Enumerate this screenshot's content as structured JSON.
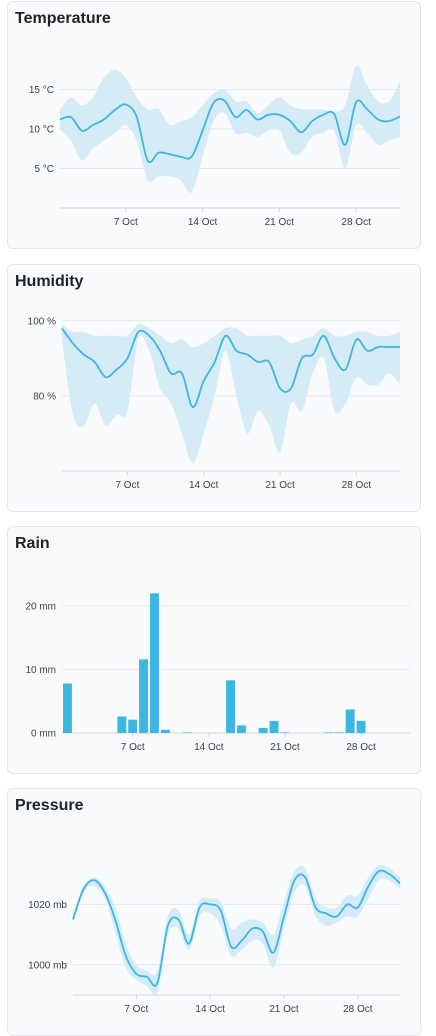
{
  "colors": {
    "line": "#3cb6e3",
    "band": "#cfe9f6",
    "bar": "#3cb6e3"
  },
  "charts": {
    "temperature": {
      "chart_data": {
        "type": "line",
        "title": "Temperature",
        "x_ticks": [
          {
            "day": 7,
            "label": "7 Oct"
          },
          {
            "day": 14,
            "label": "14 Oct"
          },
          {
            "day": 21,
            "label": "21 Oct"
          },
          {
            "day": 28,
            "label": "28 Oct"
          }
        ],
        "y_ticks": [
          {
            "value": 5,
            "label": "5 °C"
          },
          {
            "value": 10,
            "label": "10 °C"
          },
          {
            "value": 15,
            "label": "15 °C"
          }
        ],
        "xlim": [
          1,
          32
        ],
        "ylim": [
          0,
          20
        ],
        "x": [
          1,
          2,
          3,
          4,
          5,
          6,
          7,
          8,
          9,
          10,
          11,
          12,
          13,
          14,
          15,
          16,
          17,
          18,
          19,
          20,
          21,
          22,
          23,
          24,
          25,
          26,
          27,
          28,
          29,
          30,
          31,
          32
        ],
        "mean": [
          11.2,
          11.5,
          9.8,
          10.5,
          11.2,
          12.4,
          13.1,
          11.5,
          6.0,
          7.0,
          6.8,
          6.5,
          6.5,
          9.8,
          13.3,
          13.6,
          11.5,
          12.4,
          11.2,
          11.8,
          11.8,
          11.0,
          9.6,
          11.0,
          11.8,
          11.9,
          8.0,
          13.4,
          12.5,
          11.2,
          11.0,
          11.6
        ],
        "low": [
          10.0,
          8.5,
          6.0,
          7.5,
          8.5,
          9.5,
          10.5,
          8.5,
          3.5,
          4.0,
          4.0,
          3.5,
          2.0,
          6.5,
          11.0,
          12.0,
          9.5,
          9.5,
          9.0,
          9.8,
          9.8,
          7.0,
          7.0,
          9.0,
          9.5,
          9.8,
          5.0,
          10.5,
          9.5,
          8.0,
          8.5,
          9.0
        ],
        "high": [
          12.5,
          14.0,
          13.0,
          14.0,
          16.5,
          17.5,
          16.5,
          14.0,
          12.5,
          12.5,
          10.5,
          11.0,
          11.5,
          13.0,
          14.5,
          15.0,
          13.5,
          13.5,
          12.0,
          13.0,
          14.0,
          13.0,
          12.5,
          12.5,
          12.5,
          12.2,
          13.0,
          18.0,
          15.5,
          13.5,
          13.5,
          16.0
        ]
      }
    },
    "humidity": {
      "chart_data": {
        "type": "line",
        "title": "Humidity",
        "x_ticks": [
          {
            "day": 7,
            "label": "7 Oct"
          },
          {
            "day": 14,
            "label": "14 Oct"
          },
          {
            "day": 21,
            "label": "21 Oct"
          },
          {
            "day": 28,
            "label": "28 Oct"
          }
        ],
        "y_ticks": [
          {
            "value": 80,
            "label": "80 %"
          },
          {
            "value": 100,
            "label": "100 %"
          }
        ],
        "xlim": [
          1,
          32
        ],
        "ylim": [
          60,
          101
        ],
        "x": [
          1,
          2,
          3,
          4,
          5,
          6,
          7,
          8,
          9,
          10,
          11,
          12,
          13,
          14,
          15,
          16,
          17,
          18,
          19,
          20,
          21,
          22,
          23,
          24,
          25,
          26,
          27,
          28,
          29,
          30,
          31,
          32
        ],
        "mean": [
          98,
          94,
          91,
          89,
          85,
          87,
          90,
          97,
          96,
          92,
          86,
          86,
          77,
          84,
          89,
          96,
          92,
          91,
          89,
          89,
          82,
          82,
          90,
          91,
          96,
          90,
          87,
          95,
          92,
          93,
          93,
          93
        ],
        "low": [
          95,
          75,
          72,
          78,
          72,
          75,
          76,
          95,
          92,
          82,
          78,
          70,
          62,
          70,
          80,
          92,
          80,
          70,
          76,
          72,
          65,
          78,
          76,
          86,
          90,
          76,
          78,
          85,
          83,
          83,
          86,
          83
        ],
        "high": [
          99,
          97,
          97,
          96,
          96,
          96,
          96,
          99,
          98,
          96,
          94,
          95,
          93,
          94,
          96,
          98,
          98,
          96,
          96,
          96,
          96,
          94,
          95,
          96,
          98,
          96,
          96,
          97,
          97,
          96,
          96,
          97
        ]
      }
    },
    "rain": {
      "chart_data": {
        "type": "bar",
        "title": "Rain",
        "x_ticks": [
          {
            "day": 7,
            "label": "7 Oct"
          },
          {
            "day": 14,
            "label": "14 Oct"
          },
          {
            "day": 21,
            "label": "21 Oct"
          },
          {
            "day": 28,
            "label": "28 Oct"
          }
        ],
        "y_ticks": [
          {
            "value": 0,
            "label": "0 mm"
          },
          {
            "value": 10,
            "label": "10 mm"
          },
          {
            "value": 20,
            "label": "20 mm"
          }
        ],
        "xlim": [
          0.5,
          32.5
        ],
        "ylim": [
          0,
          23
        ],
        "x": [
          1,
          2,
          3,
          4,
          5,
          6,
          7,
          8,
          9,
          10,
          11,
          12,
          13,
          14,
          15,
          16,
          17,
          18,
          19,
          20,
          21,
          22,
          23,
          24,
          25,
          26,
          27,
          28,
          29,
          30,
          31,
          32
        ],
        "values": [
          7.8,
          0,
          0,
          0,
          0,
          2.6,
          2.1,
          11.6,
          22.0,
          0.5,
          0,
          0.1,
          0,
          0,
          0,
          8.3,
          1.2,
          0,
          0.8,
          1.9,
          0.1,
          0,
          0,
          0,
          0.1,
          0.1,
          3.7,
          1.9,
          0,
          0,
          0,
          0
        ]
      }
    },
    "pressure": {
      "chart_data": {
        "type": "line",
        "title": "Pressure",
        "x_ticks": [
          {
            "day": 7,
            "label": "7 Oct"
          },
          {
            "day": 14,
            "label": "14 Oct"
          },
          {
            "day": 21,
            "label": "21 Oct"
          },
          {
            "day": 28,
            "label": "28 Oct"
          }
        ],
        "y_ticks": [
          {
            "value": 1000,
            "label": "1000 mb"
          },
          {
            "value": 1020,
            "label": "1020 mb"
          }
        ],
        "xlim": [
          1,
          32
        ],
        "ylim": [
          990,
          1040
        ],
        "x": [
          1,
          2,
          3,
          4,
          5,
          6,
          7,
          8,
          9,
          10,
          11,
          12,
          13,
          14,
          15,
          16,
          17,
          18,
          19,
          20,
          21,
          22,
          23,
          24,
          25,
          26,
          27,
          28,
          29,
          30,
          31,
          32
        ],
        "mean": [
          1015,
          1025,
          1028,
          1024,
          1015,
          1003,
          997,
          996,
          994,
          1013,
          1015,
          1007,
          1019,
          1020,
          1018,
          1006,
          1008,
          1012,
          1011,
          1004,
          1016,
          1028,
          1029,
          1019,
          1017,
          1016,
          1020,
          1019,
          1026,
          1031,
          1030,
          1027
        ],
        "low": [
          1014,
          1024,
          1026,
          1022,
          1011,
          999,
          995,
          993,
          991,
          1010,
          1012,
          1005,
          1016,
          1017,
          1013,
          1003,
          1005,
          1008,
          1007,
          999,
          1012,
          1024,
          1026,
          1016,
          1013,
          1014,
          1016,
          1016,
          1022,
          1028,
          1028,
          1025
        ],
        "high": [
          1017,
          1026,
          1029,
          1026,
          1019,
          1007,
          1000,
          998,
          998,
          1016,
          1018,
          1010,
          1021,
          1022,
          1021,
          1012,
          1014,
          1015,
          1014,
          1010,
          1021,
          1031,
          1032,
          1022,
          1019,
          1019,
          1023,
          1023,
          1029,
          1033,
          1032,
          1029
        ]
      }
    }
  }
}
